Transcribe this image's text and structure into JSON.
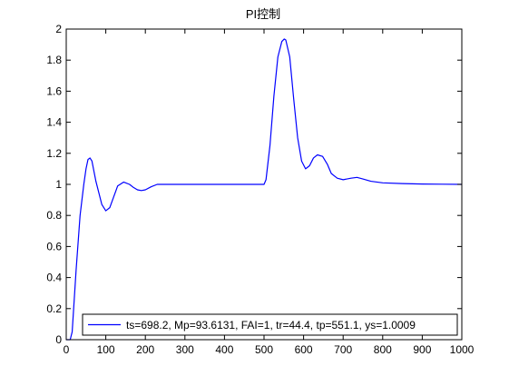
{
  "chart_data": {
    "type": "line",
    "title": "PI控制",
    "xlabel": "",
    "ylabel": "",
    "xlim": [
      0,
      1000
    ],
    "ylim": [
      0,
      2
    ],
    "xticks": [
      0,
      100,
      200,
      300,
      400,
      500,
      600,
      700,
      800,
      900,
      1000
    ],
    "yticks": [
      0,
      0.2,
      0.4,
      0.6,
      0.8,
      1,
      1.2,
      1.4,
      1.6,
      1.8,
      2
    ],
    "xtick_labels": [
      "0",
      "100",
      "200",
      "300",
      "400",
      "500",
      "600",
      "700",
      "800",
      "900",
      "1000"
    ],
    "ytick_labels": [
      "0",
      "0.2",
      "0.4",
      "0.6",
      "0.8",
      "1",
      "1.2",
      "1.4",
      "1.6",
      "1.8",
      "2"
    ],
    "grid": false,
    "legend_position": "bottom-right",
    "series": [
      {
        "name": "ts=698.2,  Mp=93.6131, FAI=1, tr=44.4, tp=551.1, ys=1.0009",
        "color": "#0000ff",
        "x": [
          0,
          10,
          15,
          25,
          35,
          44.4,
          50,
          55,
          60,
          65,
          75,
          90,
          100,
          110,
          120,
          130,
          145,
          160,
          170,
          180,
          190,
          200,
          215,
          230,
          250,
          300,
          400,
          500,
          505,
          515,
          525,
          535,
          545,
          551.1,
          555,
          565,
          575,
          585,
          595,
          605,
          615,
          625,
          635,
          648,
          660,
          670,
          685,
          700,
          720,
          735,
          750,
          770,
          800,
          850,
          900,
          950,
          1000
        ],
        "y": [
          0,
          0,
          0.05,
          0.45,
          0.8,
          1.0,
          1.1,
          1.16,
          1.17,
          1.15,
          1.02,
          0.87,
          0.83,
          0.85,
          0.92,
          0.99,
          1.015,
          1.0,
          0.98,
          0.965,
          0.96,
          0.965,
          0.985,
          1.0,
          1.0,
          1.0,
          1.0,
          1.0,
          1.03,
          1.25,
          1.57,
          1.82,
          1.92,
          1.936,
          1.93,
          1.82,
          1.55,
          1.3,
          1.15,
          1.1,
          1.12,
          1.17,
          1.19,
          1.18,
          1.13,
          1.07,
          1.04,
          1.03,
          1.04,
          1.045,
          1.035,
          1.02,
          1.01,
          1.005,
          1.002,
          1.001,
          1.0
        ]
      }
    ]
  }
}
